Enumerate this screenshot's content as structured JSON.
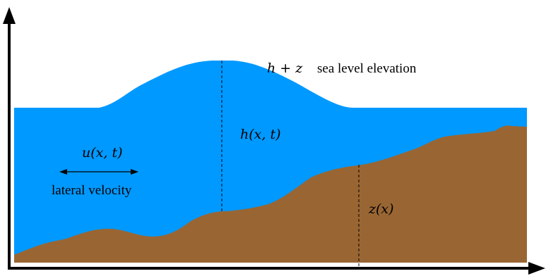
{
  "labels": {
    "sea_level_symbol": "h + z",
    "sea_level_text": "sea level elevation",
    "depth": "h(x, t)",
    "velocity_symbol": "u(x, t)",
    "velocity_text": "lateral velocity",
    "bottom": "z(x)"
  },
  "colors": {
    "water": "#0099ff",
    "ground": "#996633",
    "axes": "#000000"
  }
}
